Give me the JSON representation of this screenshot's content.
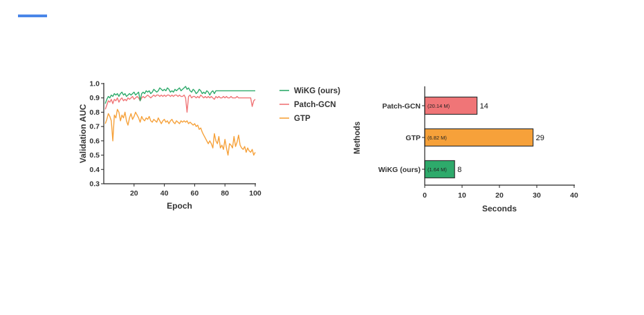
{
  "accent_color": "#4a86e8",
  "chart_data": [
    {
      "type": "line",
      "xlabel": "Epoch",
      "ylabel": "Validation AUC",
      "xlim": [
        0,
        100
      ],
      "ylim": [
        0.3,
        1.0
      ],
      "xticks": [
        20,
        40,
        60,
        80,
        100
      ],
      "yticks": [
        0.3,
        0.4,
        0.5,
        0.6,
        0.7,
        0.8,
        0.9,
        1.0
      ],
      "ytick_labels": [
        "0.3",
        "0.4",
        "0.5",
        "0.6",
        "0.7",
        "0.8",
        "0.9",
        "1.0"
      ],
      "legend_position": "right",
      "series": [
        {
          "name": "WiKG (ours)",
          "color": "#2eaa6b",
          "x": [
            1,
            2,
            3,
            4,
            5,
            6,
            7,
            8,
            9,
            10,
            11,
            12,
            13,
            14,
            15,
            16,
            17,
            18,
            19,
            20,
            21,
            22,
            23,
            24,
            25,
            26,
            27,
            28,
            29,
            30,
            31,
            32,
            33,
            34,
            35,
            36,
            37,
            38,
            39,
            40,
            41,
            42,
            43,
            44,
            45,
            46,
            47,
            48,
            49,
            50,
            51,
            52,
            53,
            54,
            55,
            56,
            57,
            58,
            59,
            60,
            61,
            62,
            63,
            64,
            65,
            66,
            67,
            68,
            69,
            70,
            71,
            72,
            73,
            74,
            75,
            76,
            77,
            78,
            79,
            80,
            81,
            82,
            83,
            84,
            85,
            86,
            87,
            88,
            89,
            90,
            91,
            92,
            93,
            94,
            95,
            96,
            97,
            98,
            99,
            100
          ],
          "values": [
            0.86,
            0.89,
            0.91,
            0.9,
            0.92,
            0.91,
            0.93,
            0.92,
            0.93,
            0.91,
            0.93,
            0.94,
            0.92,
            0.93,
            0.91,
            0.92,
            0.93,
            0.92,
            0.93,
            0.94,
            0.92,
            0.93,
            0.94,
            0.88,
            0.93,
            0.94,
            0.93,
            0.95,
            0.94,
            0.95,
            0.93,
            0.94,
            0.96,
            0.95,
            0.94,
            0.95,
            0.97,
            0.96,
            0.95,
            0.96,
            0.95,
            0.97,
            0.96,
            0.94,
            0.95,
            0.94,
            0.96,
            0.95,
            0.96,
            0.97,
            0.95,
            0.96,
            0.97,
            0.98,
            0.96,
            0.97,
            0.95,
            0.94,
            0.96,
            0.95,
            0.93,
            0.94,
            0.96,
            0.95,
            0.93,
            0.94,
            0.93,
            0.95,
            0.94,
            0.92,
            0.94,
            0.95,
            0.93,
            0.95,
            0.95,
            0.95,
            0.95,
            0.95,
            0.95,
            0.95,
            0.95,
            0.95,
            0.95,
            0.95,
            0.95,
            0.95,
            0.95,
            0.95,
            0.95,
            0.95,
            0.95,
            0.95,
            0.95,
            0.95,
            0.95,
            0.95,
            0.95,
            0.95,
            0.95,
            0.95
          ]
        },
        {
          "name": "Patch-GCN",
          "color": "#f07577",
          "x": [
            1,
            2,
            3,
            4,
            5,
            6,
            7,
            8,
            9,
            10,
            11,
            12,
            13,
            14,
            15,
            16,
            17,
            18,
            19,
            20,
            21,
            22,
            23,
            24,
            25,
            26,
            27,
            28,
            29,
            30,
            31,
            32,
            33,
            34,
            35,
            36,
            37,
            38,
            39,
            40,
            41,
            42,
            43,
            44,
            45,
            46,
            47,
            48,
            49,
            50,
            51,
            52,
            53,
            54,
            55,
            56,
            57,
            58,
            59,
            60,
            61,
            62,
            63,
            64,
            65,
            66,
            67,
            68,
            69,
            70,
            71,
            72,
            73,
            74,
            75,
            76,
            77,
            78,
            79,
            80,
            81,
            82,
            83,
            84,
            85,
            86,
            87,
            88,
            89,
            90,
            91,
            92,
            93,
            94,
            95,
            96,
            97,
            98,
            99,
            100
          ],
          "values": [
            0.82,
            0.85,
            0.88,
            0.87,
            0.89,
            0.86,
            0.89,
            0.88,
            0.9,
            0.87,
            0.89,
            0.9,
            0.88,
            0.89,
            0.88,
            0.9,
            0.89,
            0.9,
            0.91,
            0.89,
            0.9,
            0.91,
            0.9,
            0.88,
            0.9,
            0.91,
            0.9,
            0.91,
            0.92,
            0.91,
            0.9,
            0.91,
            0.92,
            0.91,
            0.92,
            0.92,
            0.91,
            0.92,
            0.91,
            0.92,
            0.91,
            0.92,
            0.92,
            0.91,
            0.92,
            0.91,
            0.92,
            0.92,
            0.91,
            0.92,
            0.91,
            0.91,
            0.92,
            0.9,
            0.8,
            0.91,
            0.92,
            0.9,
            0.91,
            0.91,
            0.9,
            0.91,
            0.9,
            0.92,
            0.91,
            0.9,
            0.91,
            0.9,
            0.91,
            0.9,
            0.91,
            0.9,
            0.89,
            0.91,
            0.9,
            0.91,
            0.9,
            0.9,
            0.91,
            0.9,
            0.91,
            0.9,
            0.9,
            0.91,
            0.9,
            0.9,
            0.9,
            0.91,
            0.9,
            0.9,
            0.9,
            0.9,
            0.9,
            0.9,
            0.9,
            0.9,
            0.9,
            0.84,
            0.88,
            0.89
          ]
        },
        {
          "name": "GTP",
          "color": "#f6a13a",
          "x": [
            1,
            2,
            3,
            4,
            5,
            6,
            7,
            8,
            9,
            10,
            11,
            12,
            13,
            14,
            15,
            16,
            17,
            18,
            19,
            20,
            21,
            22,
            23,
            24,
            25,
            26,
            27,
            28,
            29,
            30,
            31,
            32,
            33,
            34,
            35,
            36,
            37,
            38,
            39,
            40,
            41,
            42,
            43,
            44,
            45,
            46,
            47,
            48,
            49,
            50,
            51,
            52,
            53,
            54,
            55,
            56,
            57,
            58,
            59,
            60,
            61,
            62,
            63,
            64,
            65,
            66,
            67,
            68,
            69,
            70,
            71,
            72,
            73,
            74,
            75,
            76,
            77,
            78,
            79,
            80,
            81,
            82,
            83,
            84,
            85,
            86,
            87,
            88,
            89,
            90,
            91,
            92,
            93,
            94,
            95,
            96,
            97,
            98,
            99,
            100
          ],
          "values": [
            0.72,
            0.75,
            0.79,
            0.77,
            0.74,
            0.6,
            0.78,
            0.76,
            0.82,
            0.8,
            0.74,
            0.78,
            0.76,
            0.8,
            0.74,
            0.71,
            0.76,
            0.79,
            0.75,
            0.77,
            0.8,
            0.78,
            0.76,
            0.73,
            0.77,
            0.75,
            0.74,
            0.76,
            0.75,
            0.77,
            0.74,
            0.73,
            0.75,
            0.74,
            0.73,
            0.76,
            0.74,
            0.72,
            0.74,
            0.75,
            0.73,
            0.74,
            0.72,
            0.74,
            0.75,
            0.73,
            0.72,
            0.74,
            0.73,
            0.72,
            0.74,
            0.73,
            0.74,
            0.73,
            0.74,
            0.72,
            0.73,
            0.72,
            0.71,
            0.72,
            0.7,
            0.71,
            0.68,
            0.69,
            0.66,
            0.64,
            0.62,
            0.6,
            0.58,
            0.6,
            0.58,
            0.55,
            0.65,
            0.6,
            0.58,
            0.63,
            0.55,
            0.57,
            0.54,
            0.61,
            0.55,
            0.5,
            0.58,
            0.57,
            0.55,
            0.63,
            0.56,
            0.59,
            0.64,
            0.57,
            0.55,
            0.54,
            0.56,
            0.52,
            0.55,
            0.53,
            0.52,
            0.54,
            0.5,
            0.52
          ]
        }
      ]
    },
    {
      "type": "bar",
      "orientation": "horizontal",
      "xlabel": "Seconds",
      "ylabel": "Methods",
      "xlim": [
        0,
        40
      ],
      "xticks": [
        0,
        10,
        20,
        30,
        40
      ],
      "categories": [
        "Patch-GCN",
        "GTP",
        "WiKG (ours)"
      ],
      "values": [
        14,
        29,
        8
      ],
      "value_labels": [
        "14",
        "29",
        "8"
      ],
      "param_labels": [
        "(20.14 M)",
        "(6.82 M)",
        "(1.64 M)"
      ],
      "colors": [
        "#f07577",
        "#f6a13a",
        "#2eaa6b"
      ]
    }
  ]
}
